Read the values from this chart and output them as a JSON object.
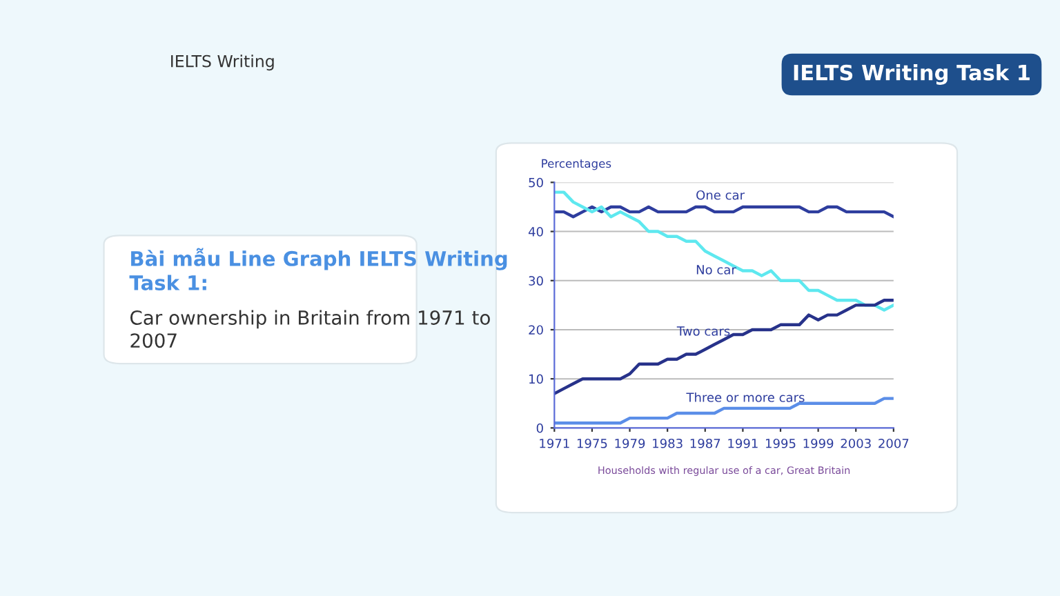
{
  "chart_data": {
    "type": "line",
    "title": "Bài mẫu Line Graph IELTS Writing Task 1:",
    "subtitle": "Car ownership in Britain from 1971 to 2007",
    "ylabel": "Percentages",
    "annotations": [
      "IELTS Writing Task 1",
      "IELTS Writing",
      "Households with regular use of a car, Great Britain"
    ],
    "x": [
      1971,
      1972,
      1973,
      1974,
      1975,
      1976,
      1977,
      1978,
      1979,
      1980,
      1981,
      1982,
      1983,
      1984,
      1985,
      1986,
      1987,
      1988,
      1989,
      1990,
      1991,
      1992,
      1993,
      1994,
      1995,
      1996,
      1997,
      1998,
      1999,
      2000,
      2001,
      2002,
      2003,
      2004,
      2005,
      2006,
      2007
    ],
    "series": [
      {
        "name": "One car",
        "color": "#2e3d9e",
        "values": [
          44,
          44,
          43,
          44,
          45,
          44,
          45,
          45,
          44,
          44,
          45,
          44,
          44,
          44,
          44,
          45,
          45,
          44,
          44,
          44,
          45,
          45,
          45,
          45,
          45,
          45,
          45,
          44,
          44,
          45,
          45,
          44,
          44,
          44,
          44,
          44,
          43
        ]
      },
      {
        "name": "No car",
        "color": "#5ee8ef",
        "values": [
          48,
          48,
          46,
          45,
          44,
          45,
          43,
          44,
          43,
          42,
          40,
          40,
          39,
          39,
          38,
          38,
          36,
          35,
          34,
          33,
          32,
          32,
          31,
          32,
          30,
          30,
          30,
          28,
          28,
          27,
          26,
          26,
          26,
          25,
          25,
          24,
          25
        ]
      },
      {
        "name": "Two cars",
        "color": "#27328a",
        "values": [
          7,
          8,
          9,
          10,
          10,
          10,
          10,
          10,
          11,
          13,
          13,
          13,
          14,
          14,
          15,
          15,
          16,
          17,
          18,
          19,
          19,
          20,
          20,
          20,
          21,
          21,
          21,
          23,
          22,
          23,
          23,
          24,
          25,
          25,
          25,
          26,
          26
        ]
      },
      {
        "name": "Three or more cars",
        "color": "#5b8ee8",
        "values": [
          1,
          1,
          1,
          1,
          1,
          1,
          1,
          1,
          2,
          2,
          2,
          2,
          2,
          3,
          3,
          3,
          3,
          3,
          4,
          4,
          4,
          4,
          4,
          4,
          4,
          4,
          5,
          5,
          5,
          5,
          5,
          5,
          5,
          5,
          5,
          6,
          6
        ]
      }
    ],
    "xlim": [
      1971,
      2007
    ],
    "ylim": [
      0,
      50
    ],
    "xticks": [
      1971,
      1975,
      1979,
      1983,
      1987,
      1991,
      1995,
      1999,
      2003,
      2007
    ],
    "yticks": [
      0,
      10,
      20,
      30,
      40,
      50
    ],
    "grid": "y",
    "legend": false,
    "marker": "none",
    "line_style": "solid"
  }
}
